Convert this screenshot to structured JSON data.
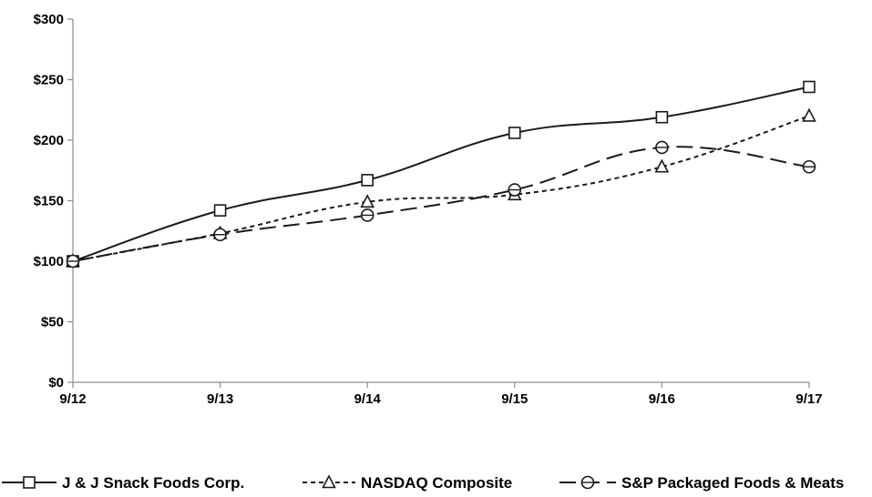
{
  "chart_data": {
    "type": "line",
    "title": "",
    "xlabel": "",
    "ylabel": "",
    "categories": [
      "9/12",
      "9/13",
      "9/14",
      "9/15",
      "9/16",
      "9/17"
    ],
    "ylim": [
      0,
      300
    ],
    "y_ticks": [
      0,
      50,
      100,
      150,
      200,
      250,
      300
    ],
    "y_tick_labels": [
      "$0",
      "$50",
      "$100",
      "$150",
      "$200",
      "$250",
      "$300"
    ],
    "grid": false,
    "legend_position": "bottom",
    "series": [
      {
        "name": "J & J Snack Foods Corp.",
        "values": [
          100,
          142,
          167,
          206,
          219,
          244
        ],
        "line_style": "solid",
        "marker": "square",
        "color": "#1a1a1a"
      },
      {
        "name": "NASDAQ Composite",
        "values": [
          100,
          123,
          149,
          155,
          178,
          220
        ],
        "line_style": "dotted",
        "marker": "triangle",
        "color": "#1a1a1a"
      },
      {
        "name": "S&P Packaged Foods & Meats",
        "values": [
          100,
          122,
          138,
          159,
          194,
          178
        ],
        "line_style": "dashed",
        "marker": "circle",
        "color": "#1a1a1a"
      }
    ]
  }
}
